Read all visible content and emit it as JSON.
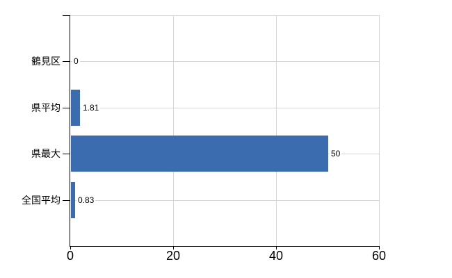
{
  "chart": {
    "background": "#ffffff",
    "bar_color": "#3b6cb0",
    "grid_color": "#d6d6d6",
    "axis_color": "#000000",
    "text_color": "#000000"
  },
  "chart_data": {
    "type": "bar",
    "orientation": "horizontal",
    "title": "",
    "xlabel": "",
    "ylabel": "",
    "categories": [
      "鶴見区",
      "県平均",
      "県最大",
      "全国平均"
    ],
    "values": [
      0,
      1.81,
      50,
      0.83
    ],
    "value_labels": [
      "0",
      "1.81",
      "50",
      "0.83"
    ],
    "xlim": [
      0,
      60
    ],
    "x_ticks": [
      0,
      20,
      40,
      60
    ],
    "x_tick_labels": [
      "0",
      "20",
      "40",
      "60"
    ],
    "grid": true,
    "legend": false
  }
}
